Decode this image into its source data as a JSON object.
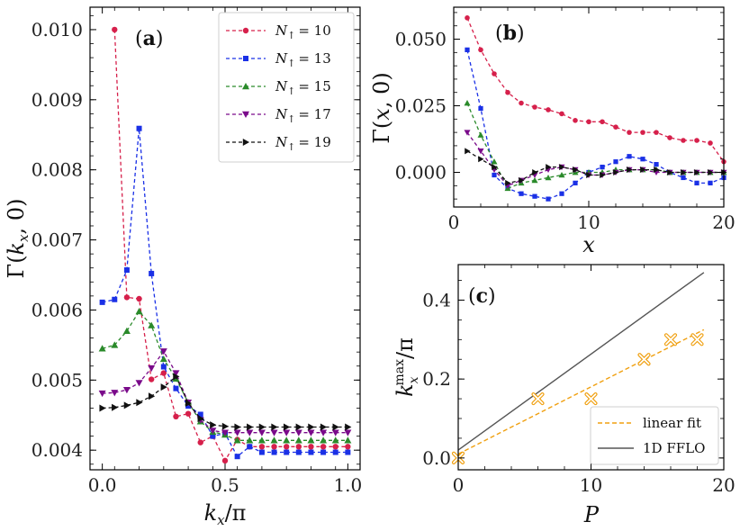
{
  "chart_data": [
    {
      "id": "a",
      "type": "line",
      "panel_label_pre": "(",
      "panel_label_bold": "a",
      "panel_label_post": ")",
      "xlabel_main": "k",
      "xlabel_sub": "x",
      "xlabel_rest": "/π",
      "ylabel_pre": "Γ(",
      "ylabel_k": "k",
      "ylabel_sub": "x",
      "ylabel_post": ", 0)",
      "xlim": [
        -0.05,
        1.05
      ],
      "ylim": [
        0.00372,
        0.01032
      ],
      "xticks": [
        0.0,
        0.5,
        1.0
      ],
      "xtick_labels": [
        "0.0",
        "0.5",
        "1.0"
      ],
      "yticks": [
        0.004,
        0.005,
        0.006,
        0.007,
        0.008,
        0.009,
        0.01
      ],
      "ytick_labels": [
        "0.004",
        "0.005",
        "0.006",
        "0.007",
        "0.008",
        "0.009",
        "0.010"
      ],
      "legend": {
        "position": "top-right",
        "var_main": "N",
        "var_sub": "↑"
      },
      "series": [
        {
          "name": "10",
          "label": "= 10",
          "color": "#d6204b",
          "marker": "circle",
          "x": [
            0.05,
            0.1,
            0.15,
            0.2,
            0.25,
            0.3,
            0.35,
            0.4,
            0.45,
            0.5,
            0.55,
            0.6,
            0.65,
            0.7,
            0.75,
            0.8,
            0.85,
            0.9,
            0.95,
            1.0
          ],
          "y": [
            0.01,
            0.00618,
            0.00616,
            0.00501,
            0.0051,
            0.00448,
            0.00452,
            0.00411,
            0.0042,
            0.00385,
            0.00415,
            0.00405,
            0.00405,
            0.00405,
            0.00405,
            0.00405,
            0.00405,
            0.00405,
            0.00405,
            0.00405
          ]
        },
        {
          "name": "13",
          "label": "= 13",
          "color": "#1a30e6",
          "marker": "square",
          "x": [
            0.0,
            0.05,
            0.1,
            0.15,
            0.2,
            0.25,
            0.3,
            0.35,
            0.4,
            0.45,
            0.5,
            0.55,
            0.6,
            0.65,
            0.7,
            0.75,
            0.8,
            0.85,
            0.9,
            0.95,
            1.0
          ],
          "y": [
            0.00611,
            0.00615,
            0.00657,
            0.00859,
            0.00652,
            0.00519,
            0.00488,
            0.00463,
            0.00451,
            0.0042,
            0.00424,
            0.00391,
            0.00405,
            0.00397,
            0.00397,
            0.00397,
            0.00397,
            0.00397,
            0.00397,
            0.00397,
            0.00397
          ]
        },
        {
          "name": "15",
          "label": "= 15",
          "color": "#2a8a2a",
          "marker": "triangle-up",
          "x": [
            0.0,
            0.05,
            0.1,
            0.15,
            0.2,
            0.25,
            0.3,
            0.35,
            0.4,
            0.45,
            0.5,
            0.55,
            0.6,
            0.65,
            0.7,
            0.75,
            0.8,
            0.85,
            0.9,
            0.95,
            1.0
          ],
          "y": [
            0.00545,
            0.0055,
            0.0057,
            0.00598,
            0.00578,
            0.0053,
            0.00502,
            0.00468,
            0.00441,
            0.00426,
            0.00422,
            0.00414,
            0.00414,
            0.00414,
            0.00414,
            0.00414,
            0.00414,
            0.00414,
            0.00414,
            0.00414,
            0.00414
          ]
        },
        {
          "name": "17",
          "label": "= 17",
          "color": "#7a0a8a",
          "marker": "triangle-down",
          "x": [
            0.0,
            0.05,
            0.1,
            0.15,
            0.2,
            0.25,
            0.3,
            0.35,
            0.4,
            0.45,
            0.5,
            0.55,
            0.6,
            0.65,
            0.7,
            0.75,
            0.8,
            0.85,
            0.9,
            0.95,
            1.0
          ],
          "y": [
            0.00481,
            0.00482,
            0.00486,
            0.00496,
            0.00517,
            0.00541,
            0.0051,
            0.00468,
            0.00443,
            0.00428,
            0.00425,
            0.00425,
            0.00425,
            0.00425,
            0.00425,
            0.00425,
            0.00425,
            0.00425,
            0.00425,
            0.00425,
            0.00425
          ]
        },
        {
          "name": "19",
          "label": "= 19",
          "color": "#111111",
          "marker": "triangle-right",
          "x": [
            0.0,
            0.05,
            0.1,
            0.15,
            0.2,
            0.25,
            0.3,
            0.35,
            0.4,
            0.45,
            0.5,
            0.55,
            0.6,
            0.65,
            0.7,
            0.75,
            0.8,
            0.85,
            0.9,
            0.95,
            1.0
          ],
          "y": [
            0.0046,
            0.00461,
            0.00464,
            0.00468,
            0.00477,
            0.0049,
            0.00505,
            0.00467,
            0.00445,
            0.00436,
            0.00434,
            0.00433,
            0.00433,
            0.00433,
            0.00433,
            0.00433,
            0.00433,
            0.00433,
            0.00433,
            0.00433,
            0.00433
          ]
        }
      ]
    },
    {
      "id": "b",
      "type": "line",
      "panel_label_pre": "(",
      "panel_label_bold": "b",
      "panel_label_post": ")",
      "xlabel_main": "x",
      "ylabel_pre": "Γ(",
      "ylabel_var": "x",
      "ylabel_post": ", 0)",
      "xlim": [
        0,
        20
      ],
      "ylim": [
        -0.013,
        0.062
      ],
      "xticks": [
        0,
        10,
        20
      ],
      "xtick_labels": [
        "0",
        "10",
        "20"
      ],
      "yticks": [
        0.0,
        0.025,
        0.05
      ],
      "ytick_labels": [
        "0.000",
        "0.025",
        "0.050"
      ],
      "series": [
        {
          "name": "N↑=10",
          "color": "#d6204b",
          "marker": "circle",
          "x": [
            1,
            2,
            3,
            4,
            5,
            6,
            7,
            8,
            9,
            10,
            11,
            12,
            13,
            14,
            15,
            16,
            17,
            18,
            19,
            20
          ],
          "y": [
            0.058,
            0.046,
            0.037,
            0.03,
            0.026,
            0.0245,
            0.0235,
            0.022,
            0.0195,
            0.019,
            0.019,
            0.017,
            0.015,
            0.015,
            0.015,
            0.013,
            0.012,
            0.012,
            0.011,
            0.004
          ]
        },
        {
          "name": "N↑=13",
          "color": "#1a30e6",
          "marker": "square",
          "x": [
            1,
            2,
            3,
            4,
            5,
            6,
            7,
            8,
            9,
            10,
            11,
            12,
            13,
            14,
            15,
            16,
            17,
            18,
            19,
            20
          ],
          "y": [
            0.046,
            0.024,
            -0.001,
            -0.006,
            -0.008,
            -0.009,
            -0.01,
            -0.008,
            -0.004,
            0.0,
            0.002,
            0.004,
            0.006,
            0.005,
            0.003,
            0.0,
            -0.002,
            -0.004,
            -0.004,
            -0.002
          ]
        },
        {
          "name": "N↑=15",
          "color": "#2a8a2a",
          "marker": "triangle-up",
          "x": [
            1,
            2,
            3,
            4,
            5,
            6,
            7,
            8,
            9,
            10,
            11,
            12,
            13,
            14,
            15,
            16,
            17,
            18,
            19,
            20
          ],
          "y": [
            0.026,
            0.014,
            0.004,
            -0.006,
            -0.004,
            -0.003,
            -0.002,
            -0.001,
            0.0,
            0.0,
            0.0,
            0.001,
            0.001,
            0.001,
            0.001,
            0.0,
            0.0,
            0.0,
            0.0,
            0.0
          ]
        },
        {
          "name": "N↑=17",
          "color": "#7a0a8a",
          "marker": "triangle-down",
          "x": [
            1,
            2,
            3,
            4,
            5,
            6,
            7,
            8,
            9,
            10,
            11,
            12,
            13,
            14,
            15,
            16,
            17,
            18,
            19,
            20
          ],
          "y": [
            0.015,
            0.008,
            0.001,
            -0.005,
            -0.003,
            -0.001,
            0.001,
            0.002,
            0.001,
            -0.001,
            -0.001,
            0.0,
            0.001,
            0.001,
            0.0,
            0.0,
            0.0,
            0.0,
            0.0,
            0.0
          ]
        },
        {
          "name": "N↑=19",
          "color": "#111111",
          "marker": "triangle-right",
          "x": [
            1,
            2,
            3,
            4,
            5,
            6,
            7,
            8,
            9,
            10,
            11,
            12,
            13,
            14,
            15,
            16,
            17,
            18,
            19,
            20
          ],
          "y": [
            0.008,
            0.005,
            0.002,
            -0.004,
            -0.003,
            0.0,
            0.002,
            0.002,
            0.001,
            -0.001,
            -0.001,
            0.0,
            0.001,
            0.001,
            0.001,
            0.0,
            0.0,
            0.0,
            0.0,
            0.0
          ]
        }
      ]
    },
    {
      "id": "c",
      "type": "scatter",
      "panel_label_pre": "(",
      "panel_label_bold": "c",
      "panel_label_post": ")",
      "xlabel_main": "P",
      "ylabel_main": "k",
      "ylabel_sub": "x",
      "ylabel_sup": "max",
      "ylabel_rest": "/π",
      "xlim": [
        0,
        20
      ],
      "ylim": [
        -0.03,
        0.49
      ],
      "xticks": [
        0,
        10,
        20
      ],
      "xtick_labels": [
        "0",
        "10",
        "20"
      ],
      "yticks": [
        0.0,
        0.2,
        0.4
      ],
      "ytick_labels": [
        "0.0",
        "0.2",
        "0.4"
      ],
      "points": {
        "color": "#f0a010",
        "marker": "x-circle",
        "x": [
          0,
          6,
          10,
          14,
          16,
          18
        ],
        "y": [
          0.0,
          0.15,
          0.15,
          0.25,
          0.3,
          0.3
        ]
      },
      "fit_lines": [
        {
          "name": "linear fit",
          "color": "#f0a010",
          "style": "dashed",
          "x": [
            0,
            18.5
          ],
          "y": [
            0.01,
            0.325
          ]
        },
        {
          "name": "1D FFLO",
          "color": "#555555",
          "style": "solid",
          "x": [
            0,
            18.5
          ],
          "y": [
            0.02,
            0.47
          ]
        }
      ],
      "legend": {
        "position": "bottom-right"
      }
    }
  ]
}
